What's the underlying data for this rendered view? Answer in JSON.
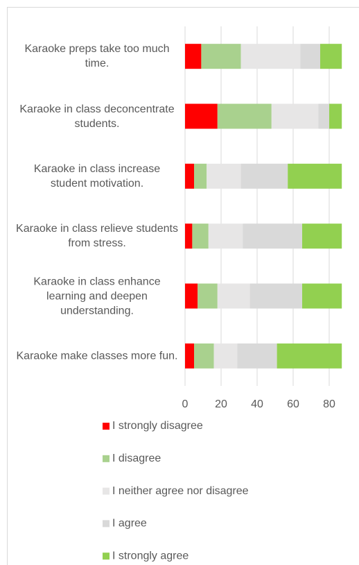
{
  "chart_data": {
    "type": "stacked_barh",
    "categories": [
      "Karaoke preps take too much time.",
      "Karaoke in class deconcentrate students.",
      "Karaoke in class increase student motivation.",
      "Karaoke in class relieve students from stress.",
      "Karaoke in class enhance learning and deepen understanding.",
      "Karaoke make classes more fun."
    ],
    "series": [
      {
        "name": "I strongly disagree",
        "color": "#ff0000",
        "values": [
          9,
          18,
          5,
          4,
          7,
          5
        ]
      },
      {
        "name": "I disagree",
        "color": "#a9d18e",
        "values": [
          22,
          30,
          7,
          9,
          11,
          11
        ]
      },
      {
        "name": "I neither agree nor disagree",
        "color": "#e7e6e6",
        "values": [
          33,
          26,
          19,
          19,
          18,
          13
        ]
      },
      {
        "name": "I agree",
        "color": "#d9d9d9",
        "values": [
          11,
          6,
          26,
          33,
          29,
          22
        ]
      },
      {
        "name": "I strongly agree",
        "color": "#92d050",
        "values": [
          12,
          7,
          30,
          22,
          22,
          36
        ]
      }
    ],
    "xlim": [
      0,
      88
    ],
    "xticks": [
      0,
      20,
      40,
      60,
      80
    ],
    "grid": true
  }
}
